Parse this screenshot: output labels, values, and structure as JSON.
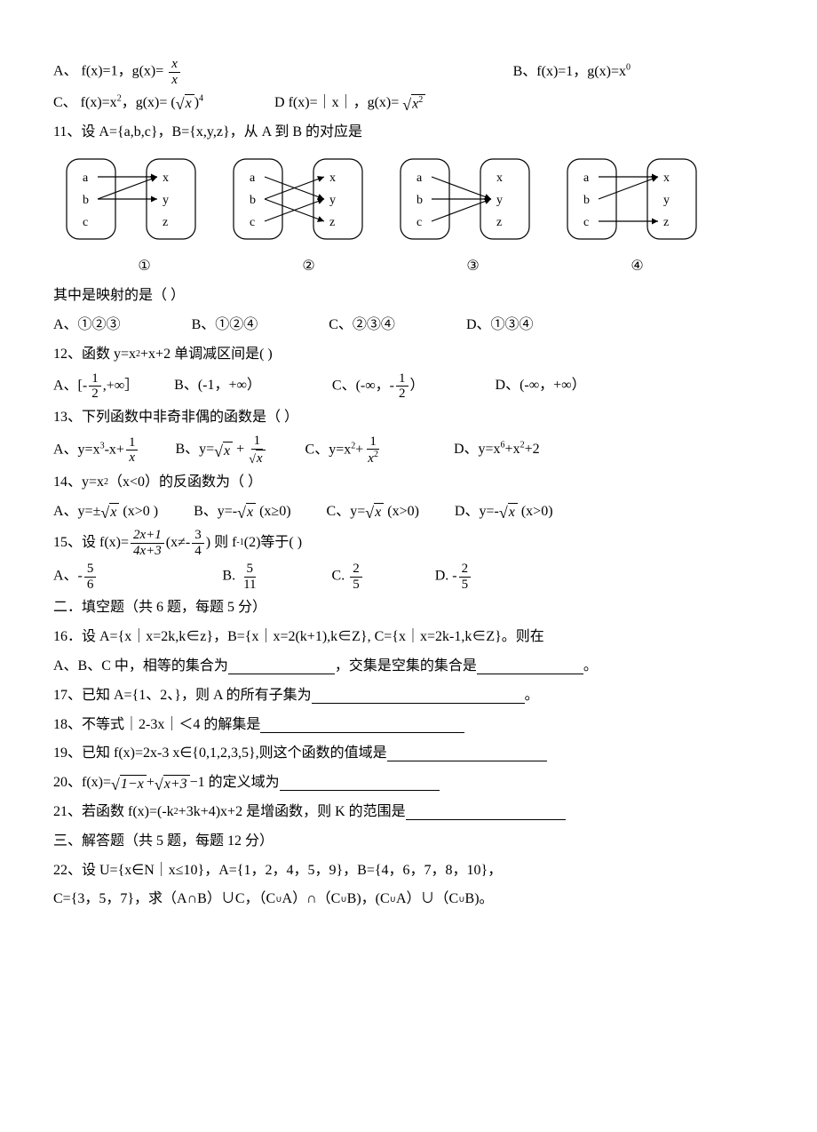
{
  "q10": {
    "optA": "A、  f(x)=1，g(x)=",
    "fracA_num": "x",
    "fracA_den": "x",
    "optB": "B、f(x)=1，g(x)=x",
    "optB_sup": "0",
    "optC_pre": "C、  f(x)=x",
    "optC_sup1": "2",
    "optC_mid": "，g(x)= (",
    "optC_rad": "x",
    "optC_post": ")",
    "optC_sup2": "4",
    "optD_pre": "D  f(x)=｜x｜，g(x)= ",
    "optD_rad": "x",
    "optD_rad_sup": "2"
  },
  "q11": {
    "stem": "11、设 A={a,b,c}，B={x,y,z}，从 A 到 B 的对应是",
    "left_labels": [
      "a",
      "b",
      "c"
    ],
    "right_labels": [
      "x",
      "y",
      "z"
    ],
    "map1": [
      [
        "a",
        "x"
      ],
      [
        "b",
        "y"
      ],
      [
        "b",
        "x"
      ]
    ],
    "map2": [
      [
        "a",
        "y"
      ],
      [
        "b",
        "x"
      ],
      [
        "b",
        "z"
      ],
      [
        "c",
        "y"
      ]
    ],
    "map3": [
      [
        "a",
        "y"
      ],
      [
        "b",
        "y"
      ],
      [
        "c",
        "y"
      ]
    ],
    "map4": [
      [
        "a",
        "x"
      ],
      [
        "b",
        "x"
      ],
      [
        "c",
        "z"
      ]
    ],
    "circled": [
      "①",
      "②",
      "③",
      "④"
    ],
    "sub_stem": "其中是映射的是（      ）",
    "optA": "A、①②③",
    "optB": "B、①②④",
    "optC": "C、②③④",
    "optD": "D、①③④",
    "stroke": "#000000",
    "bg": "#ffffff"
  },
  "q12": {
    "stem_pre": "12、函数 y=x",
    "stem_sup": "2",
    "stem_post": "+x+2 单调减区间是(      )",
    "optA_pre": "A、[-",
    "optA_num": "1",
    "optA_den": "2",
    "optA_post": ",+∞］",
    "optB": "B、(-1，+∞）",
    "optC_pre": "C、(-∞，-",
    "optC_num": "1",
    "optC_den": "2",
    "optC_post": "）",
    "optD": "D、(-∞，+∞）"
  },
  "q13": {
    "stem": "13、下列函数中非奇非偶的函数是（      ）",
    "optA_pre": "A、y=x",
    "optA_sup": "3",
    "optA_mid": "-x+",
    "optA_num": "1",
    "optA_den": "x",
    "optB_pre": "B、y=",
    "optB_rad": "x",
    "optB_mid": " +",
    "optB_num": "1",
    "optB_den_rad": "x",
    "optC_pre": "C、y=x",
    "optC_sup": "2",
    "optC_mid": "+",
    "optC_num": "1",
    "optC_den_pre": "x",
    "optC_den_sup": "2",
    "optD_pre": "D、y=x",
    "optD_sup1": "6",
    "optD_mid": "+x",
    "optD_sup2": "2",
    "optD_post": "+2"
  },
  "q14": {
    "stem_pre": "14、y=x",
    "stem_sup": "2",
    "stem_post": "（x<0）的反函数为（      ）",
    "optA_pre": "A、y=±",
    "optA_rad": "x",
    "optA_post": " (x>0  )",
    "optB_pre": "B、y=-",
    "optB_rad": "x",
    "optB_post": " (x≥0)",
    "optC_pre": "C、y=",
    "optC_rad": "x",
    "optC_post": " (x>0)",
    "optD_pre": "D、y=-",
    "optD_rad": "x",
    "optD_post": " (x>0)"
  },
  "q15": {
    "stem_pre": "15、设 f(x)= ",
    "stem_num": "2x+1",
    "stem_den": "4x+3",
    "stem_mid": " (x≠-",
    "stem_n2": "3",
    "stem_d2": "4",
    "stem_post": ") 则 f",
    "stem_sup": "-1",
    "stem_end": "(2)等于(       )",
    "optA_pre": "A、-",
    "optA_num": "5",
    "optA_den": "6",
    "optB_pre": "B. ",
    "optB_num": "5",
    "optB_den": "11",
    "optC_pre": "C. ",
    "optC_num": "2",
    "optC_den": "5",
    "optD_pre": "D. -",
    "optD_num": "2",
    "optD_den": "5"
  },
  "sec2": "二．填空题（共 6 题，每题 5 分）",
  "q16": {
    "line1": "16．设 A={x｜x=2k,k∈z}，B={x｜x=2(k+1),k∈Z},    C={x｜x=2k-1,k∈Z}。则在",
    "line2_pre": "A、B、C 中，相等的集合为",
    "line2_mid": "，交集是空集的集合是",
    "line2_post": "。"
  },
  "q17": {
    "pre": "17、已知 A={1、2、}，则 A 的所有子集为",
    "post": "。"
  },
  "q18": {
    "pre": "18、不等式｜2-3x｜＜4 的解集是"
  },
  "q19": {
    "pre": "19、已知 f(x)=2x-3  x∈{0,1,2,3,5},则这个函数的值域是"
  },
  "q20": {
    "pre": "20、f(x)= ",
    "rad1": "1−x",
    "mid": " +",
    "rad2": "x+3",
    "post": " −1 的定义域为"
  },
  "q21": {
    "pre": "21、若函数 f(x)=(-k",
    "sup": "2",
    "mid": "+3k+4)x+2 是增函数，则 K 的范围是"
  },
  "sec3": "三、解答题（共 5 题，每题 12 分）",
  "q22": {
    "line1": "22、设 U={x∈N｜x≤10}，A={1，2，4，5，9}，B={4，6，7，8，10}，",
    "line2_pre": "C={3，5，7}，求（A∩B）∪C，（C",
    "u1": "∪",
    "line2_mid1": "A）∩（C",
    "u2": "∪",
    "line2_mid2": "B)，(C",
    "u3": "∪",
    "line2_mid3": "A）∪（C",
    "u4": "∪",
    "line2_end": "B)。"
  }
}
